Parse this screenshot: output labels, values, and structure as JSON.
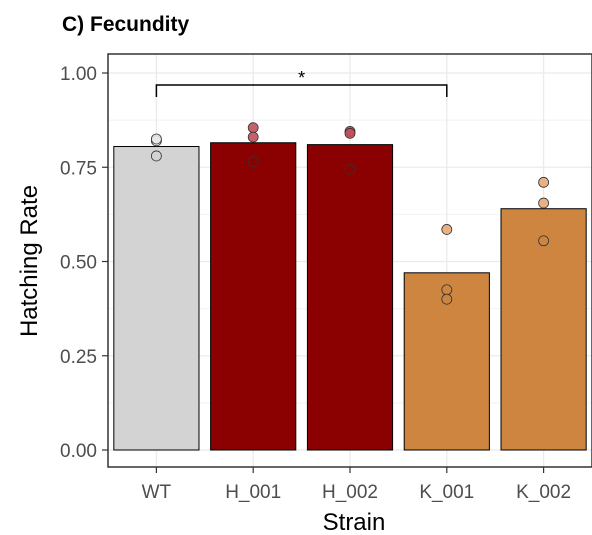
{
  "chart_data": {
    "type": "bar",
    "title": "C) Fecundity",
    "xlabel": "Strain",
    "ylabel": "Hatching Rate",
    "categories": [
      "WT",
      "H_001",
      "H_002",
      "K_001",
      "K_002"
    ],
    "values": [
      0.805,
      0.815,
      0.81,
      0.47,
      0.64
    ],
    "points": [
      [
        0.82,
        0.825,
        0.78
      ],
      [
        0.855,
        0.83,
        0.765
      ],
      [
        0.845,
        0.84,
        0.745
      ],
      [
        0.585,
        0.425,
        0.4
      ],
      [
        0.71,
        0.655,
        0.555
      ]
    ],
    "colors": [
      "#d3d3d3",
      "#8b0000",
      "#8b0000",
      "#cd853f",
      "#cd853f"
    ],
    "point_colors": [
      "#e8e8e8",
      "#c0505a",
      "#c0505a",
      "#e8a877",
      "#e8a877"
    ],
    "ylim": [
      0,
      1.03
    ],
    "yticks": [
      "0.00",
      "0.25",
      "0.50",
      "0.75",
      "1.00"
    ],
    "ytick_values": [
      0,
      0.25,
      0.5,
      0.75,
      1.0
    ],
    "grid": true,
    "significance": {
      "from": "WT",
      "to": "K_001",
      "label": "*"
    }
  }
}
